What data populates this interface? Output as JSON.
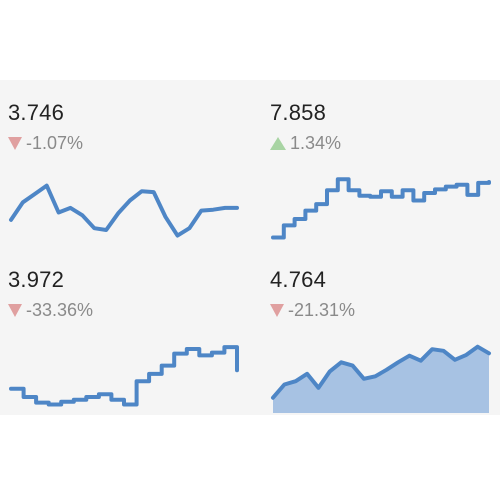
{
  "colors": {
    "line": "#4e86c6",
    "area": "#a7c2e3",
    "down": "#e0a0a0",
    "up": "#a8d4a3",
    "panel": "#f5f5f5",
    "value_text": "#222222",
    "delta_text": "#8a8a8a"
  },
  "chart_data": [
    {
      "type": "line",
      "value": "3.746",
      "change": "-1.07%",
      "direction": "down",
      "values": [
        0.5,
        2.4,
        3.3,
        4.2,
        1.3,
        1.8,
        1.0,
        -0.4,
        -0.6,
        1.2,
        2.6,
        3.6,
        3.5,
        0.8,
        -1.2,
        -0.4,
        1.5,
        1.6,
        1.8,
        1.8
      ]
    },
    {
      "type": "line",
      "step": true,
      "value": "7.858",
      "change": "1.34%",
      "direction": "up",
      "values": [
        -2.4,
        -1.1,
        -0.4,
        0.5,
        1.2,
        2.7,
        3.9,
        2.7,
        2.1,
        2.0,
        2.6,
        2.0,
        2.7,
        1.6,
        2.4,
        2.8,
        3.1,
        3.3,
        2.2,
        3.5,
        3.6
      ]
    },
    {
      "type": "line",
      "step": true,
      "value": "3.972",
      "change": "-33.36%",
      "direction": "down",
      "values": [
        0.3,
        -0.6,
        -1.2,
        -1.4,
        -1.1,
        -0.9,
        -0.6,
        -0.3,
        -0.9,
        -1.4,
        1.1,
        1.9,
        2.8,
        4.1,
        4.6,
        3.9,
        4.2,
        4.8,
        2.3
      ]
    },
    {
      "type": "area",
      "value": "4.764",
      "change": "-21.31%",
      "direction": "down",
      "values": [
        -0.5,
        1.1,
        1.5,
        2.4,
        0.7,
        2.7,
        3.8,
        3.4,
        1.8,
        2.1,
        2.9,
        3.8,
        4.6,
        4.0,
        5.4,
        5.2,
        4.1,
        4.7,
        5.7,
        4.9
      ]
    }
  ]
}
